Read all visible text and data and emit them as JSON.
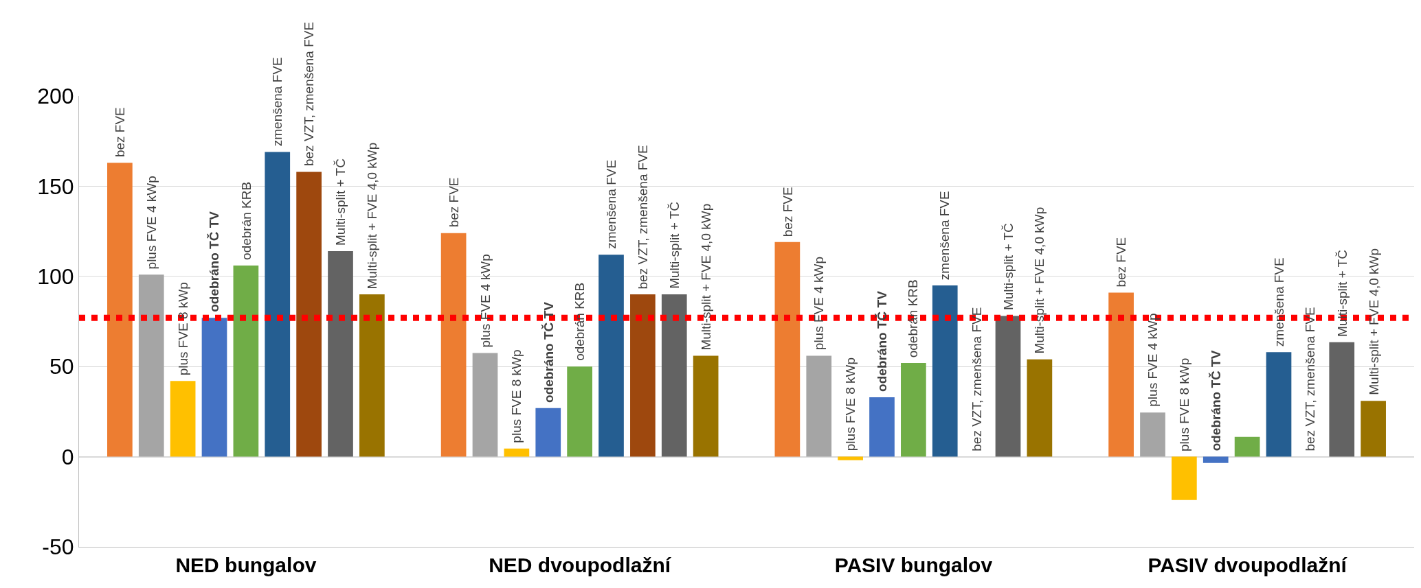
{
  "chart_data": {
    "type": "bar",
    "categories": [
      "NED bungalov",
      "NED dvoupodlažní",
      "PASIV bungalov",
      "PASIV dvoupodlažní"
    ],
    "ylim": [
      -50,
      200
    ],
    "yticks": [
      -50,
      0,
      50,
      100,
      150,
      200
    ],
    "grid": "y",
    "series": [
      {
        "color": "#ed7d31",
        "values": [
          163,
          124,
          119,
          91
        ],
        "value_labels": [
          "bez FVE",
          "bez FVE",
          "bez FVE",
          "bez FVE"
        ]
      },
      {
        "color": "#a5a5a5",
        "values": [
          101,
          57.5,
          56,
          24.5
        ],
        "value_labels": [
          "plus FVE 4 kWp",
          "plus FVE 4 kWp",
          "plus FVE 4 kWp",
          "plus FVE 4 kWp"
        ]
      },
      {
        "color": "#ffc000",
        "values": [
          42,
          4.5,
          -2,
          -24
        ],
        "value_labels": [
          "plus FVE 8 kWp",
          "plus FVE 8 kWp",
          "plus FVE 8 kWp",
          "plus FVE 8 kWp"
        ]
      },
      {
        "color": "#4472c4",
        "values": [
          77,
          27,
          33,
          -3.5
        ],
        "value_labels": [
          "odebráno TČ TV",
          "odebráno TČ TV",
          "odebráno TČ TV",
          "odebráno TČ TV"
        ]
      },
      {
        "color": "#70ad47",
        "values": [
          106,
          50,
          52,
          11
        ],
        "value_labels": [
          "odebrán KRB",
          "odebrán KRB",
          "odebrán KRB",
          null
        ]
      },
      {
        "color": "#255e91",
        "values": [
          169,
          112,
          95,
          58
        ],
        "value_labels": [
          "zmenšena FVE",
          "zmenšena FVE",
          "zmenšena FVE",
          "zmenšena FVE"
        ]
      },
      {
        "color": "#9e480e",
        "values": [
          158,
          90,
          null,
          null
        ],
        "value_labels": [
          "bez VZT, zmenšena FVE",
          "bez VZT, zmenšena FVE",
          "bez VZT, zmenšena FVE",
          "bez VZT, zmenšena FVE"
        ]
      },
      {
        "color": "#636363",
        "values": [
          114,
          90,
          78,
          63.5
        ],
        "value_labels": [
          "Multi-split + TČ",
          "Multi-split + TČ",
          "Multi-split + TČ",
          "Multi-split + TČ"
        ]
      },
      {
        "color": "#997300",
        "values": [
          90,
          56,
          54,
          31
        ],
        "value_labels": [
          "Multi-split + FVE 4,0 kWp",
          "Multi-split + FVE 4,0 kWp",
          "Multi-split + FVE 4,0 kWp",
          "Multi-split + FVE 4,0 kWp"
        ]
      }
    ],
    "ref_lines": [
      {
        "axis": "y",
        "value": 77,
        "color": "#ff0000",
        "line_style": "dotted"
      }
    ]
  }
}
